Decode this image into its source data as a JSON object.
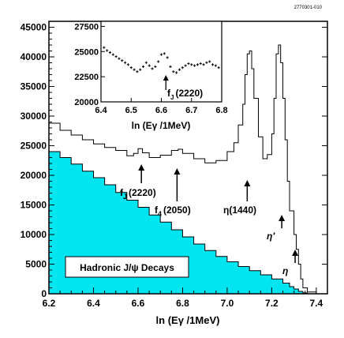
{
  "figure_id": "2770301-010",
  "chart_data": [
    {
      "type": "line",
      "xlabel": "ln (Eγ /1MeV)",
      "xlim": [
        6.2,
        7.45
      ],
      "ylim": [
        0,
        46000
      ],
      "x_ticks": [
        "6.2",
        "6.4",
        "6.6",
        "6.8",
        "7.0",
        "7.2",
        "7.4"
      ],
      "y_ticks": [
        "0",
        "5000",
        "10000",
        "15000",
        "20000",
        "25000",
        "30000",
        "35000",
        "40000",
        "45000"
      ],
      "series": [
        {
          "kind": "histogram",
          "x": [
            6.2,
            6.25,
            6.3,
            6.35,
            6.4,
            6.45,
            6.5,
            6.55,
            6.58,
            6.6,
            6.62,
            6.65,
            6.7,
            6.75,
            6.78,
            6.8,
            6.85,
            6.9,
            6.95,
            7.0,
            7.03,
            7.05,
            7.07,
            7.08,
            7.09,
            7.1,
            7.11,
            7.12,
            7.14,
            7.16,
            7.18,
            7.2,
            7.21,
            7.22,
            7.23,
            7.24,
            7.25,
            7.26,
            7.27,
            7.28,
            7.3,
            7.31,
            7.32,
            7.33,
            7.34,
            7.36,
            7.4,
            7.45
          ],
          "y": [
            28800,
            27600,
            26800,
            26000,
            25300,
            24700,
            24200,
            23300,
            23700,
            24500,
            23800,
            23000,
            23400,
            24200,
            24400,
            23700,
            22800,
            22100,
            22500,
            24000,
            25500,
            28500,
            32000,
            37000,
            40500,
            41000,
            38000,
            33000,
            26500,
            22800,
            23500,
            27000,
            33000,
            40500,
            42000,
            39000,
            33000,
            26000,
            19000,
            14000,
            10000,
            7500,
            5000,
            2500,
            1000,
            300,
            0,
            0
          ]
        },
        {
          "kind": "filled",
          "name": "Hadronic J/ψ Decays",
          "color": "#00e5f0",
          "x": [
            6.2,
            6.25,
            6.3,
            6.35,
            6.4,
            6.45,
            6.5,
            6.55,
            6.6,
            6.65,
            6.7,
            6.75,
            6.8,
            6.85,
            6.9,
            6.95,
            7.0,
            7.05,
            7.1,
            7.15,
            7.2,
            7.25,
            7.28,
            7.3,
            7.32,
            7.34,
            7.36
          ],
          "y": [
            24000,
            23000,
            21900,
            20700,
            19600,
            18400,
            17100,
            15800,
            14600,
            13300,
            12100,
            10800,
            9600,
            8400,
            7300,
            6300,
            5400,
            4600,
            3900,
            3200,
            2500,
            1800,
            1200,
            800,
            400,
            150,
            0
          ]
        }
      ],
      "annotations": [
        {
          "label": "f",
          "sub": "J",
          "value": "(2220)",
          "x": 6.615
        },
        {
          "label": "f",
          "sub": "4",
          "value": "(2050)",
          "x": 6.775
        },
        {
          "label": "η(1440)",
          "x": 7.09
        },
        {
          "label": "η′",
          "x": 7.245
        },
        {
          "label": "η",
          "x": 7.305
        }
      ],
      "legend_box": "Hadronic J/ψ Decays"
    },
    {
      "type": "scatter",
      "role": "inset",
      "xlabel": "ln (Eγ /1MeV)",
      "xlim": [
        6.4,
        6.8
      ],
      "ylim": [
        20000,
        28000
      ],
      "x_ticks": [
        "6.4",
        "6.5",
        "6.6",
        "6.7",
        "6.8"
      ],
      "y_ticks": [
        "20000",
        "22500",
        "25000",
        "27500"
      ],
      "x": [
        6.41,
        6.42,
        6.43,
        6.44,
        6.45,
        6.46,
        6.47,
        6.48,
        6.49,
        6.5,
        6.51,
        6.52,
        6.53,
        6.54,
        6.55,
        6.56,
        6.57,
        6.58,
        6.59,
        6.6,
        6.61,
        6.62,
        6.63,
        6.64,
        6.65,
        6.66,
        6.67,
        6.68,
        6.69,
        6.7,
        6.71,
        6.72,
        6.73,
        6.74,
        6.75,
        6.76,
        6.77,
        6.78,
        6.79
      ],
      "y": [
        25400,
        25100,
        24900,
        24700,
        24500,
        24300,
        24100,
        23900,
        23700,
        23400,
        23200,
        23000,
        23200,
        23500,
        23900,
        23600,
        23300,
        23500,
        24000,
        24700,
        24800,
        24400,
        23500,
        23000,
        22900,
        23200,
        23400,
        23600,
        23800,
        23700,
        23600,
        23700,
        23800,
        23700,
        23900,
        24000,
        23700,
        23600,
        23400
      ],
      "annotation": {
        "label": "f",
        "sub": "J",
        "value": "(2220)",
        "x": 6.615
      }
    }
  ]
}
